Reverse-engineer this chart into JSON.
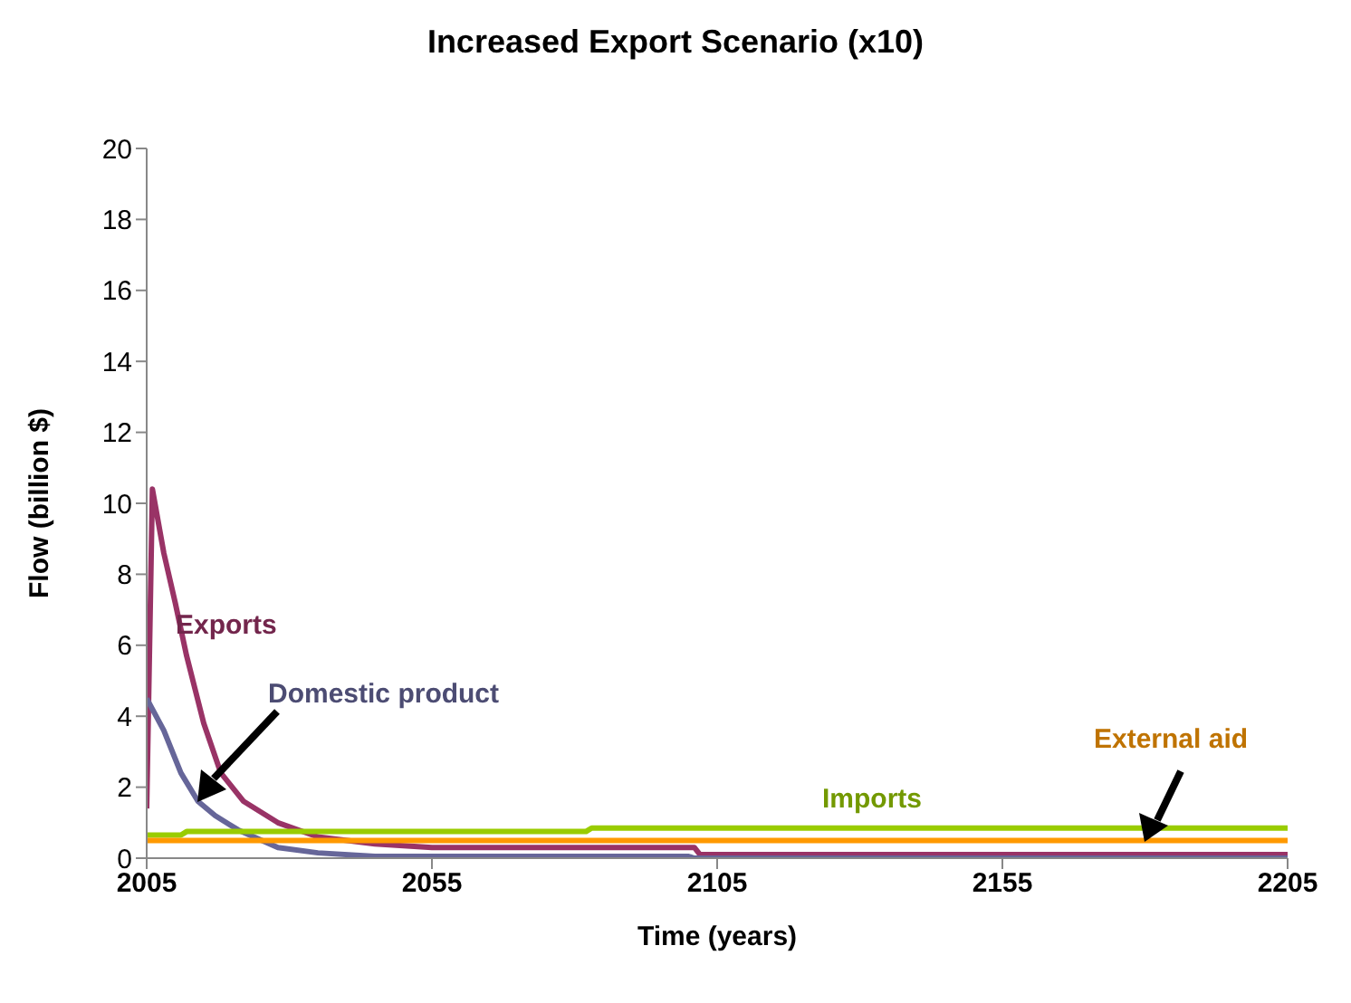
{
  "chart_data": {
    "type": "line",
    "title": "Increased Export Scenario (x10)",
    "xlabel": "Time (years)",
    "ylabel": "Flow (billion $)",
    "xlim": [
      2005,
      2205
    ],
    "xticks": [
      2005,
      2055,
      2105,
      2155,
      2205
    ],
    "ylim": [
      0,
      20
    ],
    "yticks": [
      0,
      2,
      4,
      6,
      8,
      10,
      12,
      14,
      16,
      18,
      20
    ],
    "grid": false,
    "legend": false,
    "marker": "none",
    "series": [
      {
        "name": "Exports",
        "color": "#993366",
        "x": [
          2005,
          2006,
          2008,
          2010,
          2012,
          2015,
          2018,
          2022,
          2028,
          2035,
          2045,
          2055,
          2101,
          2102,
          2205
        ],
        "values": [
          1.4,
          10.4,
          8.6,
          7.2,
          5.7,
          3.8,
          2.4,
          1.6,
          1.0,
          0.6,
          0.4,
          0.3,
          0.3,
          0.1,
          0.1
        ]
      },
      {
        "name": "Domestic product",
        "color": "#666699",
        "x": [
          2005,
          2008,
          2011,
          2014,
          2017,
          2021,
          2028,
          2035,
          2045,
          2100,
          2101,
          2205
        ],
        "values": [
          4.5,
          3.6,
          2.4,
          1.6,
          1.2,
          0.8,
          0.3,
          0.15,
          0.05,
          0.05,
          0,
          0
        ]
      },
      {
        "name": "Imports",
        "color": "#99cc00",
        "x": [
          2005,
          2011,
          2012,
          2082,
          2083,
          2205
        ],
        "values": [
          0.65,
          0.65,
          0.75,
          0.75,
          0.85,
          0.85
        ]
      },
      {
        "name": "External aid",
        "color": "#ff9900",
        "x": [
          2005,
          2205
        ],
        "values": [
          0.5,
          0.5
        ]
      }
    ]
  }
}
